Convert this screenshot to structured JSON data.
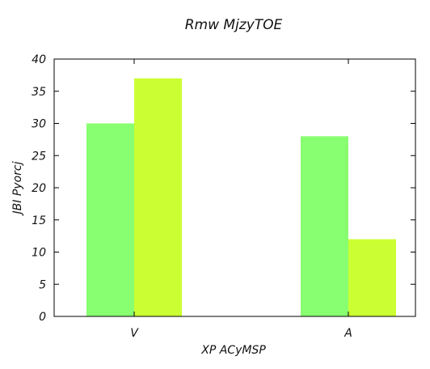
{
  "chart_data": {
    "type": "bar",
    "title": "Rmw MjzyTOE",
    "xlabel": "XP  ACyMSP",
    "ylabel": "JBI  Pyorcj",
    "categories": [
      "V",
      "A"
    ],
    "series": [
      {
        "values": [
          30,
          28
        ],
        "color": "#88ff70"
      },
      {
        "values": [
          37,
          12
        ],
        "color": "#ccff33"
      }
    ],
    "ylim": [
      0,
      40
    ],
    "yticks": [
      0,
      5,
      10,
      15,
      20,
      25,
      30,
      35,
      40
    ],
    "grid": false,
    "legend": "none"
  }
}
